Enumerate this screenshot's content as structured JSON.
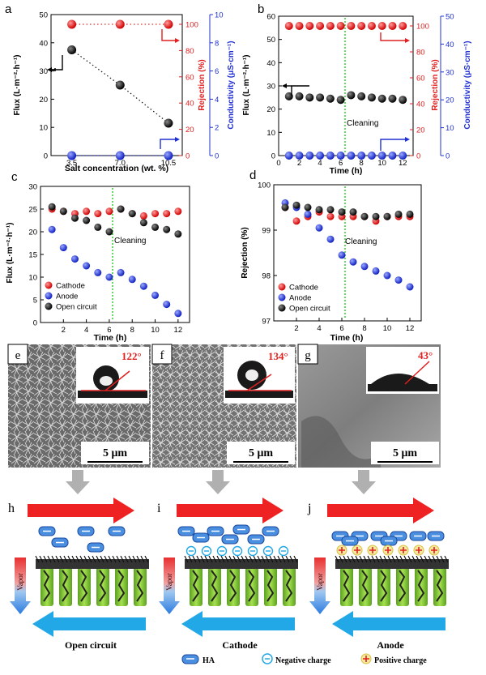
{
  "panels": {
    "a": {
      "letter": "a",
      "xlabel": "Salt concentration (wt. %)",
      "ylabel": "Flux (L·m⁻²·h⁻¹)",
      "ylabel_red": "Rejection (%)",
      "ylabel_blue": "Conductivity (μS·cm⁻¹)",
      "xticks": [
        "3.5",
        "7.0",
        "10.5"
      ],
      "yticks": [
        "0",
        "10",
        "20",
        "30",
        "40",
        "50"
      ],
      "red_ticks": [
        "0",
        "20",
        "40",
        "60",
        "80",
        "100"
      ],
      "blue_ticks": [
        "0",
        "2",
        "4",
        "6",
        "8",
        "10"
      ]
    },
    "b": {
      "letter": "b",
      "xlabel": "Time (h)",
      "ylabel": "Flux (L·m⁻²·h⁻¹)",
      "ylabel_red": "Rejection (%)",
      "ylabel_blue": "Conductivity (μS·cm⁻¹)",
      "xticks": [
        "0",
        "2",
        "4",
        "6",
        "8",
        "10",
        "12"
      ],
      "yticks": [
        "0",
        "10",
        "20",
        "30",
        "40",
        "50",
        "60"
      ],
      "red_ticks": [
        "0",
        "20",
        "40",
        "60",
        "80",
        "100"
      ],
      "blue_ticks": [
        "0",
        "10",
        "20",
        "30",
        "40",
        "50"
      ],
      "annotation": "Cleaning"
    },
    "c": {
      "letter": "c",
      "xlabel": "Time (h)",
      "ylabel": "Flux (L·m⁻²·h⁻¹)",
      "xticks": [
        "2",
        "4",
        "6",
        "8",
        "10",
        "12"
      ],
      "yticks": [
        "0",
        "5",
        "10",
        "15",
        "20",
        "25",
        "30"
      ],
      "annotation": "Cleaning",
      "legend": [
        "Cathode",
        "Anode",
        "Open circuit"
      ]
    },
    "d": {
      "letter": "d",
      "xlabel": "Time (h)",
      "ylabel": "Rejection (%)",
      "xticks": [
        "2",
        "4",
        "6",
        "8",
        "10",
        "12"
      ],
      "yticks": [
        "97",
        "98",
        "99",
        "100"
      ],
      "annotation": "Cleaning",
      "legend": [
        "Cathode",
        "Anode",
        "Open circuit"
      ]
    }
  },
  "chart_data": [
    {
      "panel": "a",
      "type": "scatter",
      "x": [
        3.5,
        7.0,
        10.5
      ],
      "xlim": [
        2.0,
        11.5
      ],
      "series": [
        {
          "name": "",
          "axis": "left",
          "color": "#111111",
          "values": [
            37.5,
            25.0,
            11.5
          ]
        },
        {
          "name": "",
          "axis": "right-red",
          "color": "#e02020",
          "values": [
            100,
            100,
            100
          ]
        },
        {
          "name": "",
          "axis": "right-blue",
          "color": "#2030d0",
          "values": [
            0,
            0,
            0
          ]
        }
      ],
      "ylim": [
        0,
        50
      ],
      "ylim_red": [
        0,
        100
      ],
      "ylim_blue": [
        0,
        10
      ]
    },
    {
      "panel": "b",
      "type": "scatter",
      "x": [
        1,
        2,
        3,
        4,
        5,
        6,
        7,
        8,
        9,
        10,
        11,
        12
      ],
      "xlim": [
        0,
        13
      ],
      "series": [
        {
          "name": "",
          "axis": "left",
          "color": "#111111",
          "values": [
            25.5,
            25.5,
            25,
            25,
            24.5,
            24,
            26,
            25.5,
            25,
            24.5,
            24.5,
            24
          ]
        },
        {
          "name": "",
          "axis": "right-red",
          "color": "#e02020",
          "values": [
            100,
            100,
            100,
            100,
            100,
            100,
            100,
            100,
            100,
            100,
            100,
            100
          ]
        },
        {
          "name": "",
          "axis": "right-blue",
          "color": "#2030d0",
          "values": [
            0,
            0,
            0,
            0,
            0,
            0,
            0,
            0,
            0,
            0,
            0,
            0
          ]
        }
      ],
      "ylim": [
        0,
        60
      ],
      "ylim_red": [
        0,
        100
      ],
      "ylim_blue": [
        0,
        50
      ]
    },
    {
      "panel": "c",
      "type": "scatter",
      "x": [
        1,
        2,
        3,
        4,
        5,
        6,
        7,
        8,
        9,
        10,
        11,
        12
      ],
      "xlim": [
        0,
        13
      ],
      "series": [
        {
          "name": "Cathode",
          "color": "#e02020",
          "values": [
            25,
            24.5,
            24,
            24.5,
            24,
            24.5,
            25,
            24,
            23.5,
            24,
            24,
            24.5
          ]
        },
        {
          "name": "Anode",
          "color": "#2030d0",
          "values": [
            20.5,
            16.5,
            14,
            12.5,
            11,
            10,
            11,
            9.5,
            8,
            6,
            4,
            2
          ]
        },
        {
          "name": "Open circuit",
          "color": "#111111",
          "values": [
            25.5,
            24.5,
            23,
            22.5,
            21,
            20,
            25,
            24,
            22,
            21,
            20.5,
            19.5
          ]
        }
      ],
      "ylim": [
        0,
        30
      ]
    },
    {
      "panel": "d",
      "type": "scatter",
      "x": [
        1,
        2,
        3,
        4,
        5,
        6,
        7,
        8,
        9,
        10,
        11,
        12
      ],
      "xlim": [
        0,
        13
      ],
      "series": [
        {
          "name": "Cathode",
          "color": "#e02020",
          "values": [
            99.5,
            99.2,
            99.3,
            99.4,
            99.3,
            99.3,
            99.3,
            99.3,
            99.2,
            99.3,
            99.3,
            99.3
          ]
        },
        {
          "name": "Anode",
          "color": "#2030d0",
          "values": [
            99.6,
            99.5,
            99.35,
            99.05,
            98.8,
            98.45,
            98.3,
            98.2,
            98.1,
            98.0,
            97.9,
            97.75
          ]
        },
        {
          "name": "Open circuit",
          "color": "#111111",
          "values": [
            99.5,
            99.55,
            99.5,
            99.45,
            99.45,
            99.4,
            99.4,
            99.3,
            99.3,
            99.3,
            99.35,
            99.35
          ]
        }
      ],
      "ylim": [
        97,
        100
      ]
    }
  ],
  "sem": [
    {
      "letter": "e",
      "scale": "5 μm",
      "angle": "122°"
    },
    {
      "letter": "f",
      "scale": "5 μm",
      "angle": "134°"
    },
    {
      "letter": "g",
      "scale": "5 μm",
      "angle": "43°"
    }
  ],
  "schematics": [
    {
      "letter": "h",
      "caption": "Open circuit",
      "vapor": "Vapor"
    },
    {
      "letter": "i",
      "caption": "Cathode",
      "vapor": "Vapor"
    },
    {
      "letter": "j",
      "caption": "Anode",
      "vapor": "Vapor"
    }
  ],
  "legend_bottom": {
    "ha": "HA",
    "neg": "Negative charge",
    "pos": "Positive charge"
  },
  "colors": {
    "red": "#e02020",
    "blue": "#2030d0",
    "black": "#111111",
    "green_dash": "#33cc33",
    "arrow_red": "#ee2222",
    "arrow_blue": "#22a8e6",
    "fiber_green": "#8ad23a"
  }
}
